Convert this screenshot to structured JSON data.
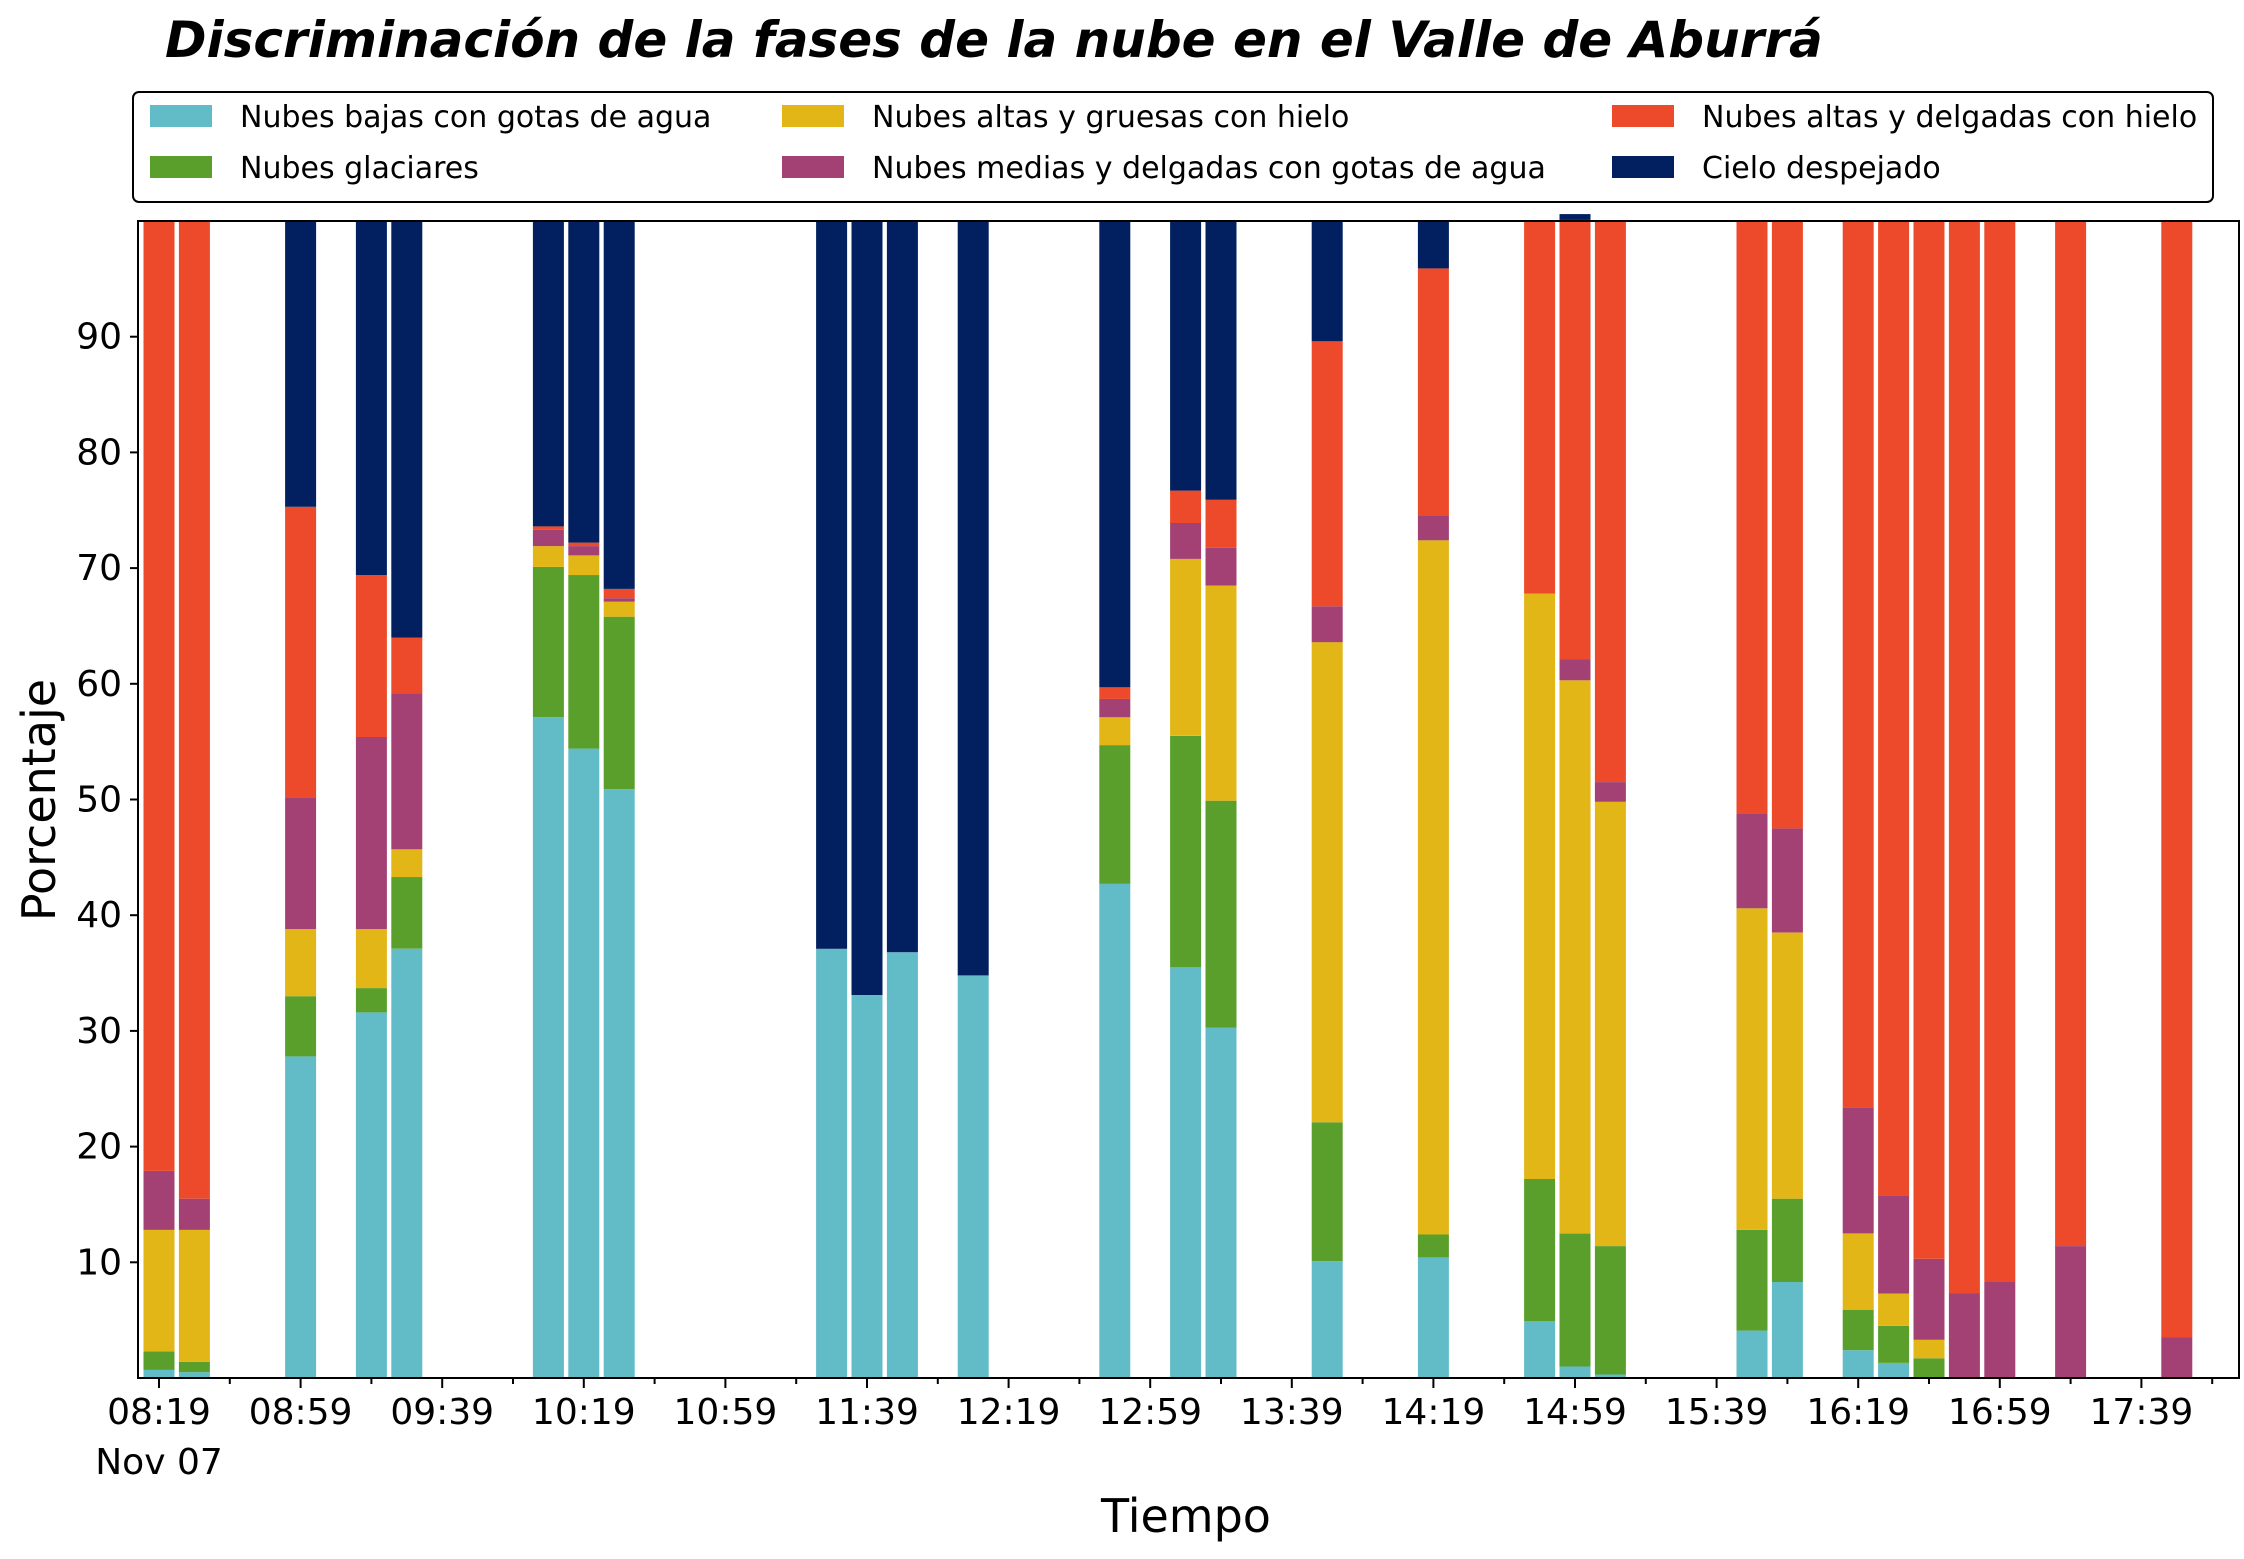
{
  "chart_data": {
    "type": "bar",
    "stacked": true,
    "title": "Discriminación de la fases de la nube en el Valle de Aburrá",
    "xlabel": "Tiempo",
    "ylabel": "Porcentaje",
    "ylim": [
      0,
      100
    ],
    "yticks": [
      10,
      20,
      30,
      40,
      50,
      60,
      70,
      80,
      90
    ],
    "xticks": [
      "08:19",
      "08:59",
      "09:39",
      "10:19",
      "10:59",
      "11:39",
      "12:19",
      "12:59",
      "13:39",
      "14:19",
      "14:59",
      "15:39",
      "16:19",
      "16:59",
      "17:39"
    ],
    "xtick_date": "Nov 07",
    "grid": false,
    "legend_position": "top",
    "x": [
      "08:19",
      "08:29",
      "08:59",
      "09:19",
      "09:29",
      "10:09",
      "10:19",
      "10:29",
      "11:29",
      "11:39",
      "11:49",
      "12:09",
      "12:49",
      "13:09",
      "13:19",
      "13:49",
      "14:19",
      "14:49",
      "14:59",
      "15:09",
      "15:49",
      "15:59",
      "16:19",
      "16:29",
      "16:39",
      "16:49",
      "16:59",
      "17:19",
      "17:49"
    ],
    "series": [
      {
        "name": "Nubes bajas con gotas de agua",
        "color": "#62bcc7",
        "values": [
          0.7,
          0.5,
          27.8,
          31.6,
          37.1,
          57.1,
          54.4,
          50.9,
          37.1,
          33.1,
          36.8,
          34.8,
          42.7,
          35.5,
          30.3,
          10.1,
          10.4,
          4.9,
          1.0,
          0.3,
          4.1,
          8.3,
          2.4,
          1.3,
          0,
          0,
          0,
          0,
          0
        ]
      },
      {
        "name": "Nubes glaciares",
        "color": "#5a9e2b",
        "values": [
          1.6,
          0.9,
          5.2,
          2.1,
          6.2,
          13.0,
          15.0,
          14.9,
          0,
          0,
          0,
          0,
          12.0,
          20.0,
          19.6,
          12.0,
          2.0,
          12.3,
          11.5,
          11.1,
          8.7,
          7.2,
          3.5,
          3.2,
          1.7,
          0,
          0,
          0,
          0
        ]
      },
      {
        "name": "Nubes altas y gruesas con hielo",
        "color": "#e2b616",
        "values": [
          10.5,
          11.4,
          5.8,
          5.1,
          2.4,
          1.8,
          1.7,
          1.3,
          0,
          0,
          0,
          0,
          2.4,
          15.3,
          18.6,
          41.5,
          60.0,
          50.6,
          47.8,
          38.4,
          27.8,
          23.0,
          6.6,
          2.8,
          1.6,
          0,
          0,
          0,
          0
        ]
      },
      {
        "name": "Nubes medias y delgadas con gotas de agua",
        "color": "#a34174",
        "values": [
          5.1,
          2.7,
          11.4,
          16.6,
          13.5,
          1.4,
          0.8,
          0.3,
          0,
          0,
          0,
          0,
          1.6,
          3.1,
          3.3,
          3.1,
          2.1,
          0,
          1.8,
          1.7,
          8.2,
          9.0,
          10.9,
          8.5,
          7.0,
          7.3,
          8.3,
          11.4,
          3.5
        ]
      },
      {
        "name": "Nubes altas y delgadas con hielo",
        "color": "#ec4a2a",
        "values": [
          82.1,
          84.5,
          25.1,
          14.0,
          4.8,
          0.3,
          0.3,
          0.8,
          0,
          0,
          0,
          0,
          1.0,
          2.8,
          4.1,
          22.9,
          21.4,
          32.2,
          38.0,
          48.5,
          51.2,
          52.5,
          76.6,
          84.2,
          89.7,
          92.7,
          91.7,
          88.6,
          96.5
        ]
      },
      {
        "name": "Cielo despejado",
        "color": "#02205f",
        "values": [
          0,
          0,
          24.7,
          30.6,
          36.0,
          26.4,
          27.8,
          31.8,
          62.9,
          66.9,
          63.2,
          65.2,
          40.3,
          23.3,
          24.1,
          10.4,
          4.1,
          0,
          0.5,
          0,
          0,
          0,
          0,
          0,
          0,
          0,
          0,
          0,
          0
        ]
      }
    ]
  }
}
